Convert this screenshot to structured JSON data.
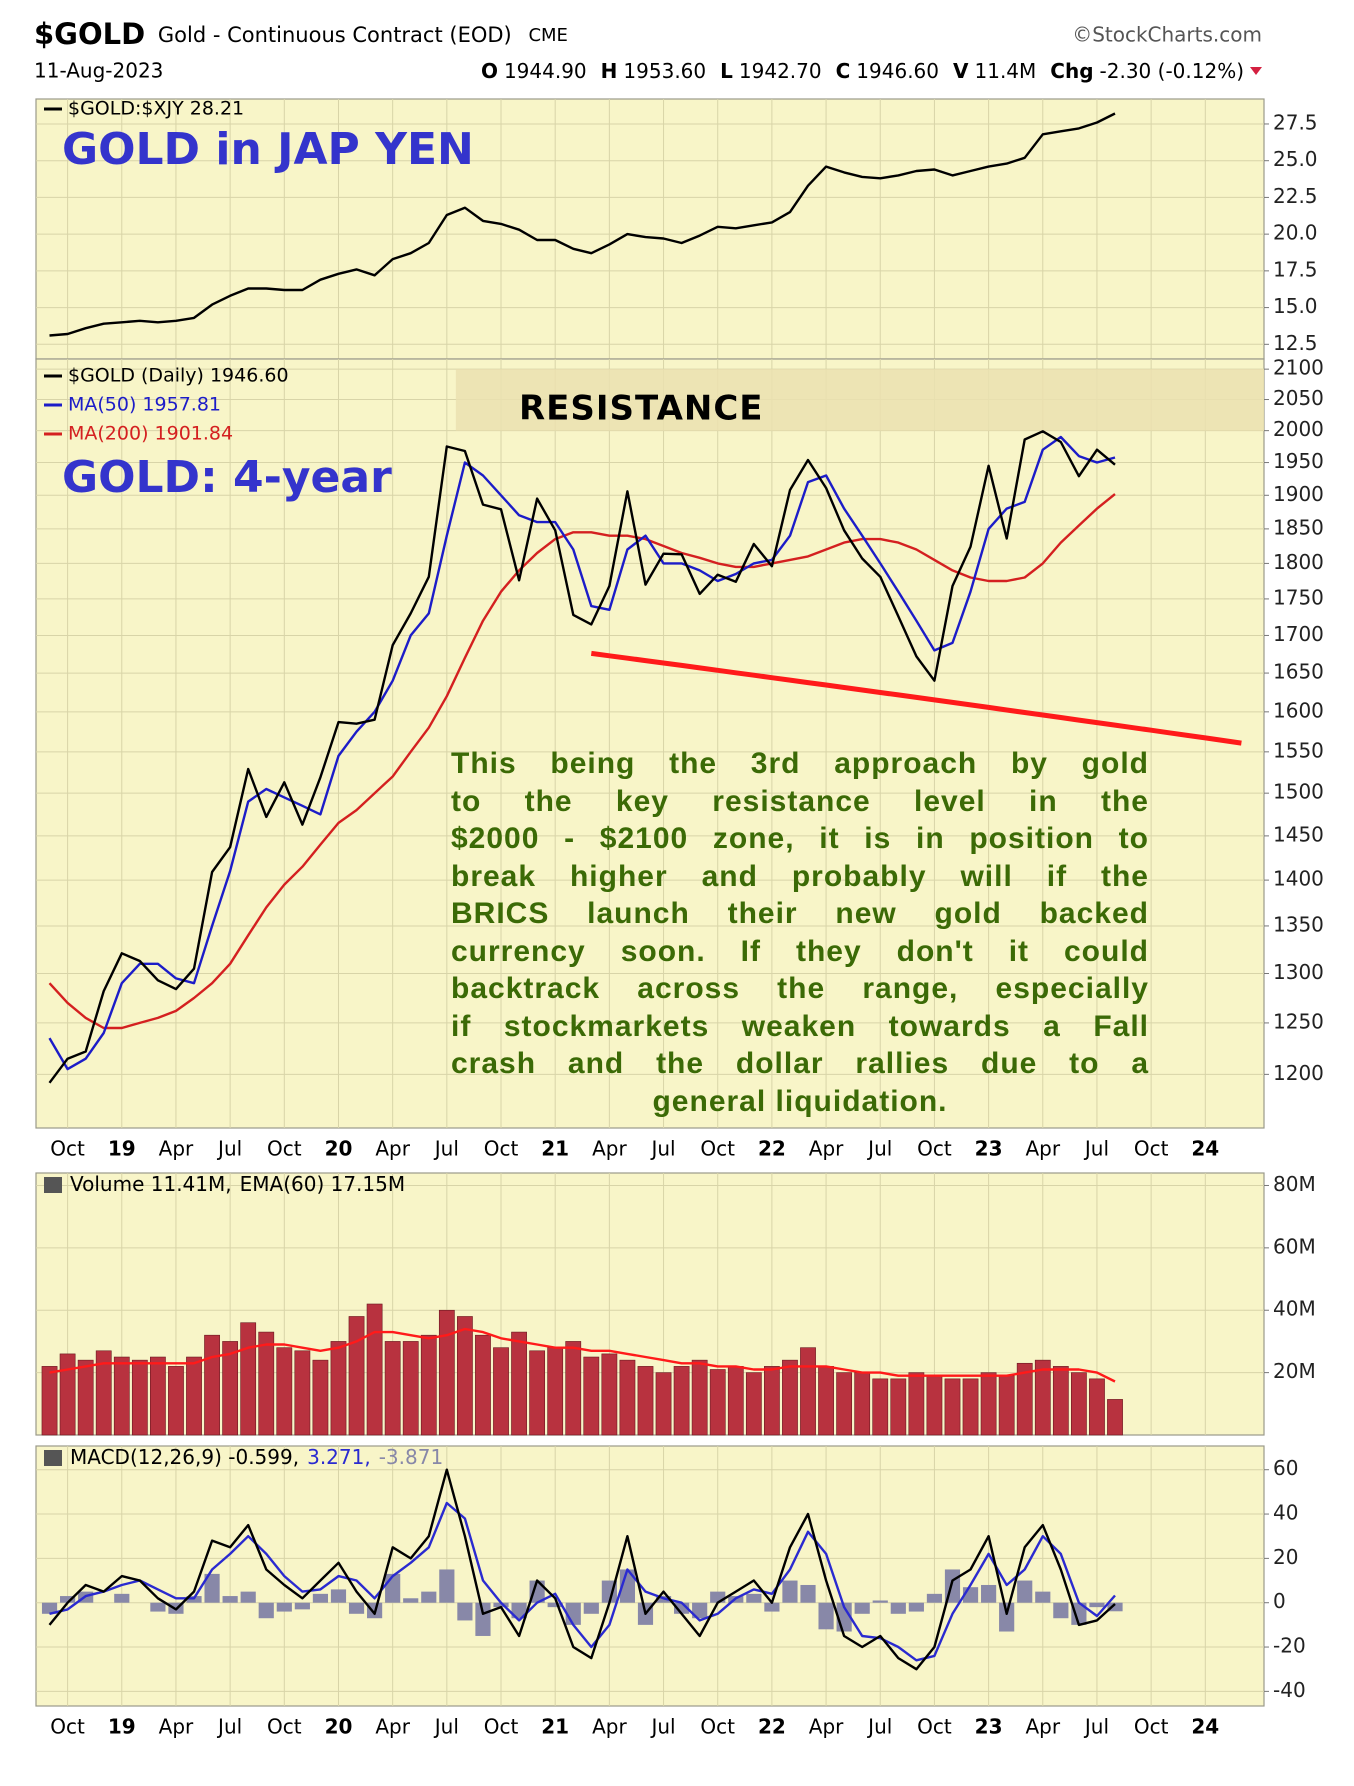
{
  "header": {
    "symbol": "$GOLD",
    "name": "Gold - Continuous Contract (EOD)",
    "exchange": "CME",
    "source": "©StockCharts.com",
    "date": "11-Aug-2023",
    "quote": [
      {
        "key": "O",
        "value": "1944.90"
      },
      {
        "key": "H",
        "value": "1953.60"
      },
      {
        "key": "L",
        "value": "1942.70"
      },
      {
        "key": "C",
        "value": "1946.60"
      },
      {
        "key": "V",
        "value": "11.4M"
      },
      {
        "key": "Chg",
        "value": "-2.30 (-0.12%)"
      }
    ]
  },
  "chart_data": [
    {
      "type": "line",
      "title": "GOLD in JAP YEN",
      "grid": true,
      "series": [
        {
          "name": "$GOLD:$XJY 28.21",
          "color": "#000000",
          "values": [
            13.1,
            13.2,
            13.6,
            13.9,
            14.0,
            14.1,
            14.0,
            14.1,
            14.3,
            15.2,
            15.8,
            16.3,
            16.3,
            16.2,
            16.2,
            16.9,
            17.3,
            17.6,
            17.2,
            18.3,
            18.7,
            19.4,
            21.3,
            21.8,
            20.9,
            20.7,
            20.3,
            19.6,
            19.6,
            19.0,
            18.7,
            19.3,
            20.0,
            19.8,
            19.7,
            19.4,
            19.9,
            20.5,
            20.4,
            20.6,
            20.8,
            21.5,
            23.3,
            24.6,
            24.2,
            23.9,
            23.8,
            24.0,
            24.3,
            24.4,
            24.0,
            24.3,
            24.6,
            24.8,
            25.2,
            26.8,
            27.0,
            27.2,
            27.6,
            28.21,
            null,
            null,
            null,
            null,
            null,
            null,
            null
          ]
        }
      ],
      "ylim": [
        11.5,
        29.2
      ],
      "yticks": [
        12.5,
        {
          "value": 15,
          "label": "15.0"
        },
        17.5,
        {
          "value": 20,
          "label": "20.0"
        },
        22.5,
        {
          "value": 25,
          "label": "25.0"
        },
        27.5
      ]
    },
    {
      "type": "line",
      "title": "GOLD: 4-year",
      "grid": true,
      "log_scale": true,
      "categories": [
        null,
        "Oct",
        null,
        null,
        "19",
        null,
        null,
        "Apr",
        null,
        null,
        "Jul",
        null,
        null,
        "Oct",
        null,
        null,
        "20",
        null,
        null,
        "Apr",
        null,
        null,
        "Jul",
        null,
        null,
        "Oct",
        null,
        null,
        "21",
        null,
        null,
        "Apr",
        null,
        null,
        "Jul",
        null,
        null,
        "Oct",
        null,
        null,
        "22",
        null,
        null,
        "Apr",
        null,
        null,
        "Jul",
        null,
        null,
        "Oct",
        null,
        null,
        "23",
        null,
        null,
        "Apr",
        null,
        null,
        "Jul",
        null,
        null,
        "Oct",
        null,
        null,
        "24",
        null,
        null
      ],
      "series": [
        {
          "name": "$GOLD (Daily) 1946.60",
          "color": "#000000",
          "values": [
            1192,
            1215,
            1222,
            1282,
            1321,
            1313,
            1293,
            1284,
            1305,
            1409,
            1437,
            1529,
            1472,
            1513,
            1463,
            1519,
            1587,
            1585,
            1590,
            1687,
            1730,
            1781,
            1975,
            1968,
            1886,
            1879,
            1776,
            1895,
            1848,
            1728,
            1715,
            1768,
            1906,
            1770,
            1814,
            1813,
            1757,
            1784,
            1774,
            1828,
            1796,
            1908,
            1954,
            1911,
            1848,
            1807,
            1781,
            1726,
            1672,
            1640,
            1768,
            1824,
            1945,
            1836,
            1986,
            1999,
            1982,
            1929,
            1970,
            1946.6,
            null,
            null,
            null,
            null,
            null,
            null,
            null
          ]
        },
        {
          "name": "MA(50) 1957.81",
          "color": "#1c1cc8",
          "values": [
            1235,
            1205,
            1215,
            1240,
            1290,
            1310,
            1310,
            1295,
            1290,
            1350,
            1410,
            1490,
            1505,
            1495,
            1485,
            1475,
            1545,
            1575,
            1600,
            1640,
            1700,
            1730,
            1840,
            1950,
            1930,
            1900,
            1870,
            1860,
            1860,
            1820,
            1740,
            1735,
            1820,
            1840,
            1800,
            1800,
            1790,
            1775,
            1785,
            1800,
            1805,
            1840,
            1920,
            1930,
            1880,
            1840,
            1800,
            1760,
            1720,
            1680,
            1690,
            1760,
            1850,
            1880,
            1890,
            1970,
            1990,
            1960,
            1950,
            1957.81,
            null,
            null,
            null,
            null,
            null,
            null,
            null
          ]
        },
        {
          "name": "MA(200) 1901.84",
          "color": "#d42020",
          "values": [
            1290,
            1270,
            1255,
            1245,
            1245,
            1250,
            1255,
            1262,
            1275,
            1290,
            1310,
            1340,
            1370,
            1395,
            1415,
            1440,
            1465,
            1480,
            1500,
            1520,
            1550,
            1580,
            1620,
            1670,
            1720,
            1760,
            1790,
            1815,
            1835,
            1845,
            1845,
            1840,
            1840,
            1835,
            1825,
            1815,
            1808,
            1800,
            1795,
            1795,
            1800,
            1805,
            1810,
            1820,
            1830,
            1835,
            1835,
            1830,
            1820,
            1805,
            1790,
            1780,
            1775,
            1775,
            1780,
            1800,
            1830,
            1855,
            1880,
            1901.84,
            null,
            null,
            null,
            null,
            null,
            null,
            null
          ]
        }
      ],
      "trendline": {
        "color": "#ff1a1a",
        "values": [
          null,
          null,
          null,
          null,
          null,
          null,
          null,
          null,
          null,
          null,
          null,
          null,
          null,
          null,
          null,
          null,
          null,
          null,
          null,
          null,
          null,
          null,
          null,
          null,
          null,
          null,
          null,
          null,
          null,
          null,
          1676,
          1672.8,
          1669.6,
          1666.4,
          1663.2,
          1660,
          1656.8,
          1653.6,
          1650.4,
          1647.2,
          1644,
          1640.8,
          1637.6,
          1634.4,
          1631.2,
          1628,
          1624.8,
          1621.6,
          1618.4,
          1615.2,
          1612,
          1608.8,
          1605.6,
          1602.4,
          1599.2,
          1596,
          1592.8,
          1589.6,
          1586.4,
          1583.2,
          1580,
          1576.8,
          1573.6,
          1570.4,
          1567.2,
          1564,
          1560.8
        ]
      },
      "resistance_zone": {
        "label": "RESISTANCE",
        "range": [
          2000,
          2100
        ],
        "color": "#ebe0b0"
      },
      "note": [
        "This being the 3rd approach by gold",
        "to the key resistance level in the",
        "$2000 - $2100 zone, it is in position to",
        "break higher and probably will if the",
        "BRICS launch their new gold backed",
        "currency soon. If they don't it could",
        "backtrack across the range, especially",
        "if stockmarkets weaken towards a Fall",
        "crash and the dollar rallies due to a",
        "general liquidation."
      ],
      "ylim": [
        1150,
        2117
      ],
      "yticks": [
        1200,
        1250,
        1300,
        1350,
        1400,
        1450,
        1500,
        1550,
        1600,
        1650,
        1700,
        1750,
        1800,
        1850,
        1900,
        1950,
        2000,
        2050,
        2100
      ]
    },
    {
      "type": "bar",
      "grid": true,
      "series": [
        {
          "name": "Volume 11.41M,",
          "color": "#b8323f",
          "values": [
            22,
            26,
            24,
            27,
            25,
            24,
            25,
            22,
            25,
            32,
            30,
            36,
            33,
            28,
            27,
            24,
            30,
            38,
            42,
            30,
            30,
            32,
            40,
            38,
            32,
            28,
            33,
            27,
            28,
            30,
            25,
            26,
            24,
            22,
            20,
            22,
            24,
            21,
            22,
            20,
            22,
            24,
            28,
            22,
            20,
            20,
            18,
            18,
            20,
            19,
            18,
            18,
            20,
            19,
            23,
            24,
            22,
            20,
            18,
            11.41,
            null,
            null,
            null,
            null,
            null,
            null,
            null
          ]
        },
        {
          "name": "EMA(60) 17.15M",
          "type": "line",
          "color": "#ff1a1a",
          "values": [
            20,
            21,
            22,
            23,
            23,
            23,
            23,
            23,
            23,
            25,
            26,
            28,
            29,
            29,
            28,
            27,
            28,
            30,
            33,
            33,
            32,
            31,
            32,
            34,
            33,
            31,
            30,
            29,
            28,
            28,
            27,
            27,
            26,
            25,
            24,
            23,
            23,
            22,
            22,
            21,
            21,
            22,
            22,
            22,
            21,
            20,
            20,
            19,
            19,
            19,
            19,
            19,
            19,
            19,
            20,
            21,
            21,
            21,
            20,
            17.15,
            null,
            null,
            null,
            null,
            null,
            null,
            null
          ]
        }
      ],
      "ylim": [
        0,
        84
      ],
      "yticks": [
        {
          "value": 20,
          "label": "20M"
        },
        {
          "value": 40,
          "label": "40M"
        },
        {
          "value": 60,
          "label": "60M"
        },
        {
          "value": 80,
          "label": "80M"
        }
      ]
    },
    {
      "type": "line",
      "grid": true,
      "categories": [
        null,
        "Oct",
        null,
        null,
        "19",
        null,
        null,
        "Apr",
        null,
        null,
        "Jul",
        null,
        null,
        "Oct",
        null,
        null,
        "20",
        null,
        null,
        "Apr",
        null,
        null,
        "Jul",
        null,
        null,
        "Oct",
        null,
        null,
        "21",
        null,
        null,
        "Apr",
        null,
        null,
        "Jul",
        null,
        null,
        "Oct",
        null,
        null,
        "22",
        null,
        null,
        "Apr",
        null,
        null,
        "Jul",
        null,
        null,
        "Oct",
        null,
        null,
        "23",
        null,
        null,
        "Apr",
        null,
        null,
        "Jul",
        null,
        null,
        "Oct",
        null,
        null,
        "24",
        null,
        null
      ],
      "series": [
        {
          "name": "MACD(12,26,9) -0.599,",
          "color": "#000000",
          "values": [
            -10,
            0,
            8,
            5,
            12,
            10,
            2,
            -3,
            5,
            28,
            25,
            35,
            15,
            8,
            2,
            10,
            18,
            5,
            -5,
            25,
            20,
            30,
            60,
            30,
            -5,
            -2,
            -15,
            10,
            2,
            -20,
            -25,
            0,
            30,
            -5,
            5,
            -5,
            -15,
            0,
            5,
            10,
            0,
            25,
            40,
            10,
            -15,
            -20,
            -15,
            -25,
            -30,
            -20,
            10,
            15,
            30,
            -5,
            25,
            35,
            15,
            -10,
            -8,
            -0.599,
            null,
            null,
            null,
            null,
            null,
            null,
            null
          ]
        },
        {
          "name": "3.271,",
          "color": "#2a2ad0",
          "values": [
            -5,
            -3,
            3,
            5,
            8,
            10,
            6,
            2,
            2,
            15,
            22,
            30,
            22,
            12,
            5,
            6,
            12,
            10,
            2,
            12,
            18,
            25,
            45,
            38,
            10,
            0,
            -8,
            0,
            4,
            -10,
            -20,
            -10,
            15,
            5,
            2,
            0,
            -8,
            -5,
            2,
            6,
            4,
            15,
            32,
            22,
            -2,
            -15,
            -16,
            -20,
            -26,
            -24,
            -5,
            8,
            22,
            8,
            15,
            30,
            22,
            0,
            -6,
            3.271,
            null,
            null,
            null,
            null,
            null,
            null,
            null
          ]
        },
        {
          "name": "-3.871",
          "type": "bar",
          "color": "#8888a8",
          "values": [
            -5,
            3,
            5,
            0,
            4,
            0,
            -4,
            -5,
            3,
            13,
            3,
            5,
            -7,
            -4,
            -3,
            4,
            6,
            -5,
            -7,
            13,
            2,
            5,
            15,
            -8,
            -15,
            -2,
            -7,
            10,
            -2,
            -10,
            -5,
            10,
            15,
            -10,
            3,
            -5,
            -7,
            5,
            3,
            4,
            -4,
            10,
            8,
            -12,
            -13,
            -5,
            1,
            -5,
            -4,
            4,
            15,
            7,
            8,
            -13,
            10,
            5,
            -7,
            -10,
            -2,
            -3.871,
            null,
            null,
            null,
            null,
            null,
            null,
            null
          ]
        }
      ],
      "ylim": [
        -46.6,
        70.7
      ],
      "yticks": [
        -40,
        -20,
        0,
        20,
        40,
        60
      ]
    }
  ]
}
